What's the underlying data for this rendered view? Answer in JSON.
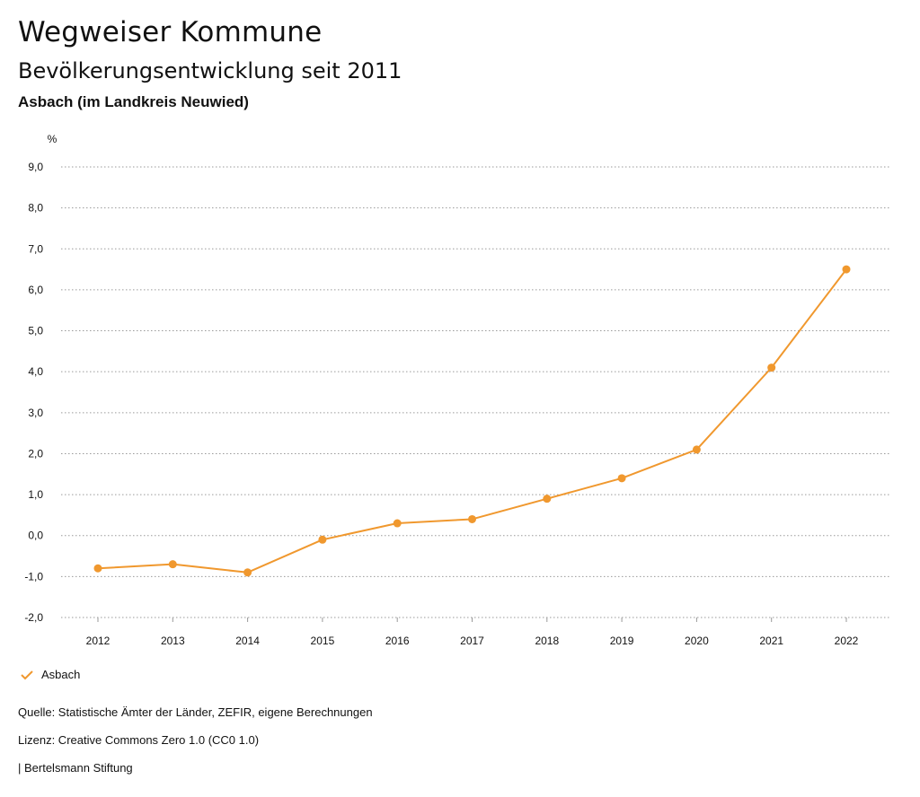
{
  "header": {
    "title": "Wegweiser Kommune",
    "subtitle": "Bevölkerungsentwicklung seit 2011",
    "region": "Asbach (im Landkreis Neuwied)"
  },
  "colors": {
    "series": "#F0982E",
    "grid": "#9a9a9a",
    "text": "#111111"
  },
  "chart_data": {
    "type": "line",
    "title": "Bevölkerungsentwicklung seit 2011",
    "ylabel": "%",
    "xlabel": "",
    "categories": [
      "2012",
      "2013",
      "2014",
      "2015",
      "2016",
      "2017",
      "2018",
      "2019",
      "2020",
      "2021",
      "2022"
    ],
    "series": [
      {
        "name": "Asbach",
        "values": [
          -0.8,
          -0.7,
          -0.9,
          -0.1,
          0.3,
          0.4,
          0.9,
          1.4,
          2.1,
          4.1,
          6.5
        ]
      }
    ],
    "ylim": [
      -2,
      9
    ],
    "yticks": [
      "-2,0",
      "-1,0",
      "0,0",
      "1,0",
      "2,0",
      "3,0",
      "4,0",
      "5,0",
      "6,0",
      "7,0",
      "8,0",
      "9,0"
    ],
    "grid": true,
    "legend_position": "bottom-left"
  },
  "legend": {
    "label": "Asbach"
  },
  "footer": {
    "source": "Quelle: Statistische Ämter der Länder, ZEFIR, eigene Berechnungen",
    "license": "Lizenz: Creative Commons Zero 1.0 (CC0 1.0)",
    "publisher": "| Bertelsmann Stiftung"
  }
}
